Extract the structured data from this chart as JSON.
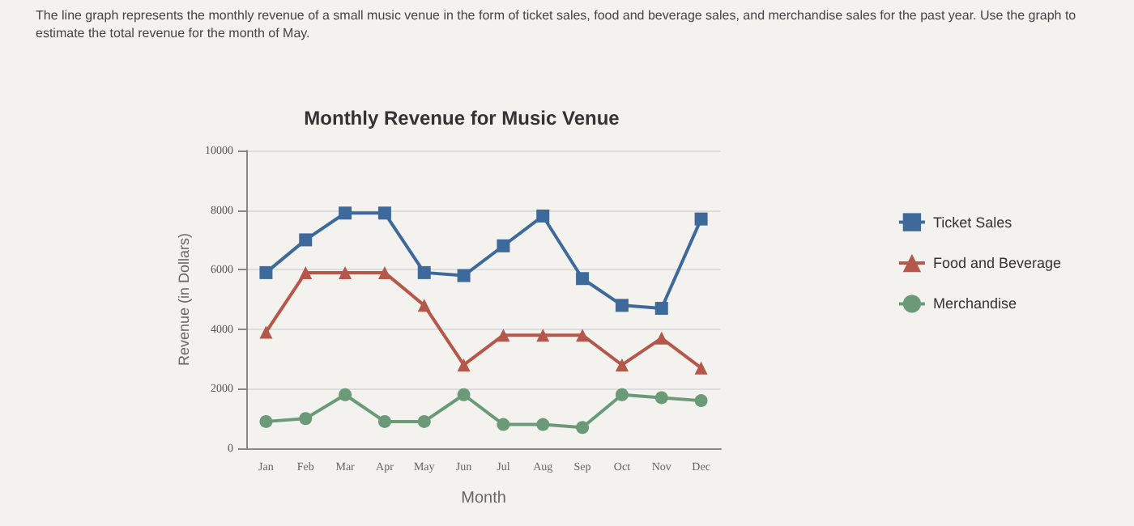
{
  "chart_data": {
    "type": "line",
    "title": "Monthly Revenue for Music Venue",
    "xlabel": "Month",
    "ylabel": "Revenue (in Dollars)",
    "annotations": [
      "The line graph represents the monthly revenue of a small music venue in the form of ticket sales, food and beverage sales, and merchandise sales for the past year. Use the graph to estimate the total revenue for the month of May."
    ],
    "categories": [
      "Jan",
      "Feb",
      "Mar",
      "Apr",
      "May",
      "Jun",
      "Jul",
      "Aug",
      "Sep",
      "Oct",
      "Nov",
      "Dec"
    ],
    "series": [
      {
        "name": "Ticket Sales",
        "color": "#3d6a9a",
        "marker": "square",
        "values": [
          5900,
          7000,
          7900,
          7900,
          5900,
          5800,
          6800,
          7800,
          5700,
          4800,
          4700,
          7700
        ]
      },
      {
        "name": "Food and Beverage",
        "color": "#b5574a",
        "marker": "triangle",
        "values": [
          3900,
          5900,
          5900,
          5900,
          4800,
          2800,
          3800,
          3800,
          3800,
          2800,
          3700,
          2700
        ]
      },
      {
        "name": "Merchandise",
        "color": "#6a9a78",
        "marker": "circle",
        "values": [
          900,
          1000,
          1800,
          900,
          900,
          1800,
          800,
          800,
          700,
          1800,
          1700,
          1600
        ]
      }
    ],
    "ylim": [
      0,
      10000
    ],
    "yticks": [
      0,
      2000,
      4000,
      6000,
      8000,
      10000
    ],
    "grid": "y",
    "legend": "right",
    "line_style": "solid"
  }
}
